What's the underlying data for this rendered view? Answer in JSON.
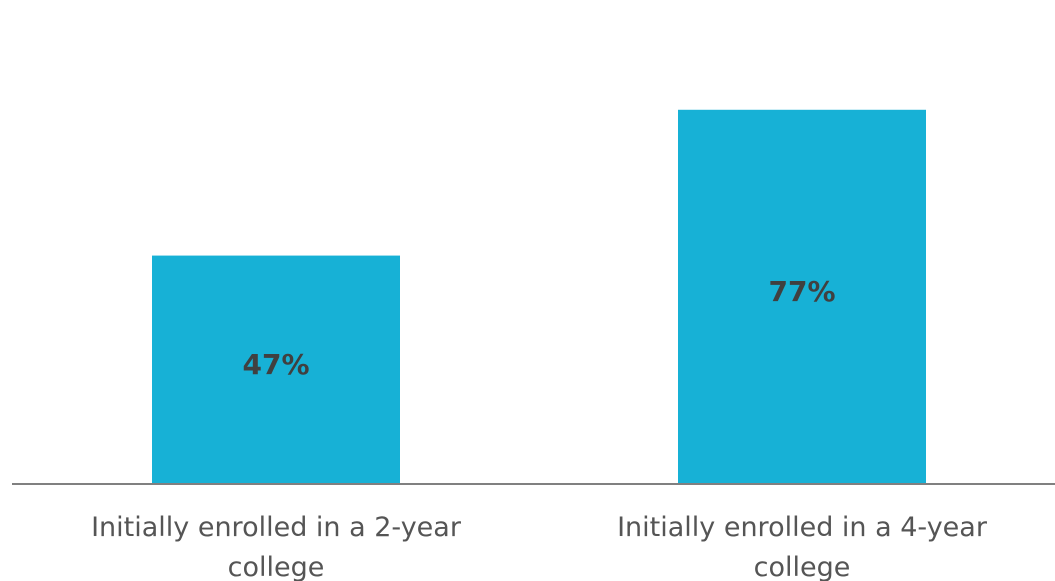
{
  "chart_data": {
    "type": "bar",
    "title": "",
    "xlabel": "",
    "ylabel": "",
    "ylim": [
      0,
      100
    ],
    "categories": [
      [
        "Initially enrolled in a 2-year",
        "college"
      ],
      [
        "Initially enrolled in a 4-year",
        "college"
      ]
    ],
    "values": [
      47,
      77
    ],
    "data_labels": [
      "47%",
      "77%"
    ],
    "bar_color": "#17b1d6",
    "axis_color": "#808080",
    "grid": false,
    "legend": "none"
  }
}
